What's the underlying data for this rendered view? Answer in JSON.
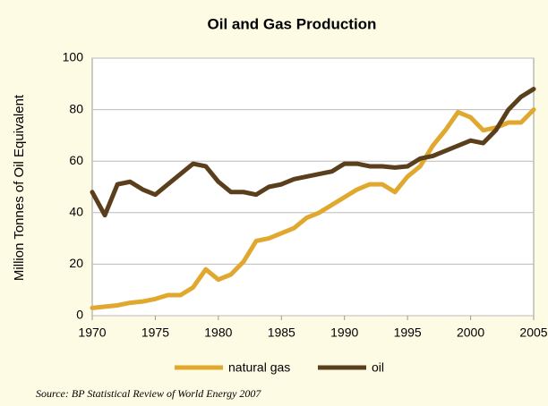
{
  "chart_data": {
    "type": "line",
    "title": "Oil and Gas Production",
    "y_label": "Million Tonnes of Oil Equivalent",
    "source": "Source: BP Statistical Review of World Energy 2007",
    "x": [
      1970,
      1971,
      1972,
      1973,
      1974,
      1975,
      1976,
      1977,
      1978,
      1979,
      1980,
      1981,
      1982,
      1983,
      1984,
      1985,
      1986,
      1987,
      1988,
      1989,
      1990,
      1991,
      1992,
      1993,
      1994,
      1995,
      1996,
      1997,
      1998,
      1999,
      2000,
      2001,
      2002,
      2003,
      2004,
      2005
    ],
    "series": [
      {
        "name": "natural gas",
        "color": "#e0a82e",
        "values": [
          3,
          3.5,
          4,
          5,
          5.5,
          6.5,
          8,
          8,
          11,
          18,
          14,
          16,
          21,
          29,
          30,
          32,
          34,
          38,
          40,
          43,
          46,
          49,
          51,
          51,
          48,
          54,
          58,
          66,
          72,
          79,
          77,
          72,
          73,
          75,
          75,
          80
        ]
      },
      {
        "name": "oil",
        "color": "#5b3f1c",
        "values": [
          48,
          39,
          51,
          52,
          49,
          47,
          51,
          55,
          59,
          58,
          52,
          48,
          48,
          47,
          50,
          51,
          53,
          54,
          55,
          56,
          59,
          59,
          58,
          58,
          57.5,
          58,
          61,
          62,
          64,
          66,
          68,
          67,
          72,
          80,
          85,
          88
        ]
      }
    ],
    "xlim": [
      1970,
      2005
    ],
    "xticks": [
      1970,
      1975,
      1980,
      1985,
      1990,
      1995,
      2000,
      2005
    ],
    "ylim": [
      0,
      100
    ],
    "yticks": [
      0,
      20,
      40,
      60,
      80,
      100
    ],
    "grid": true,
    "legend": "bottom"
  }
}
